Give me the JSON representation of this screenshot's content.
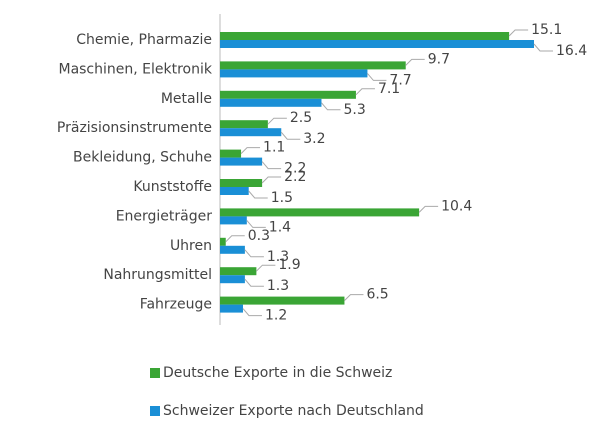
{
  "chart_data": {
    "type": "bar",
    "orientation": "horizontal",
    "categories": [
      "Chemie, Pharmazie",
      "Maschinen, Elektronik",
      "Metalle",
      "Präzisionsinstrumente",
      "Bekleidung, Schuhe",
      "Kunststoffe",
      "Energieträger",
      "Uhren",
      "Nahrungsmittel",
      "Fahrzeuge"
    ],
    "series": [
      {
        "name": "Deutsche Exporte in die Schweiz",
        "color": "#3aa535",
        "values": [
          15.1,
          9.7,
          7.1,
          2.5,
          1.1,
          2.2,
          10.4,
          0.3,
          1.9,
          6.5
        ]
      },
      {
        "name": "Schweizer Exporte nach Deutschland",
        "color": "#1a8fd6",
        "values": [
          16.4,
          7.7,
          5.3,
          3.2,
          2.2,
          1.5,
          1.4,
          1.3,
          1.3,
          1.2
        ]
      }
    ],
    "legend": "bottom"
  }
}
